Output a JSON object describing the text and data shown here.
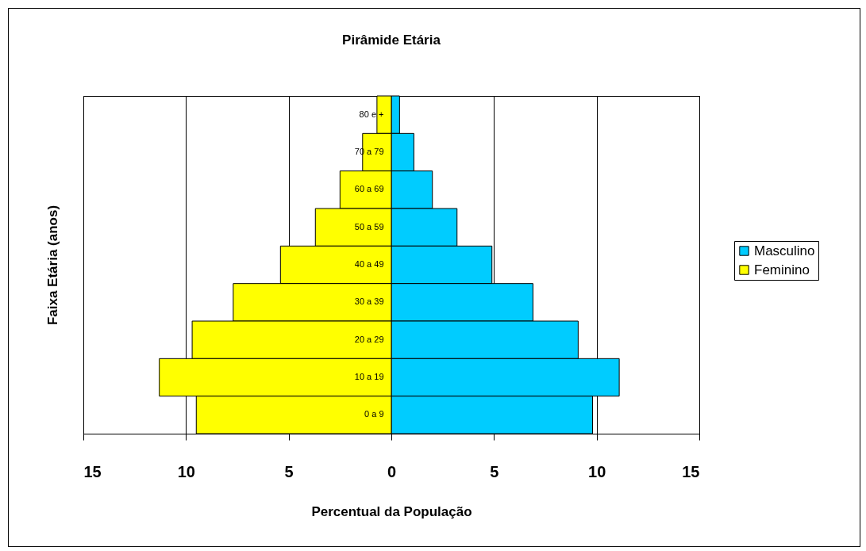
{
  "chart_data": {
    "type": "bar",
    "orientation": "horizontal",
    "title": "Pirâmide Etária",
    "xlabel": "Percentual da População",
    "ylabel": "Faixa Etária (anos)",
    "categories": [
      "80 e +",
      "70 a 79",
      "60 a 69",
      "50 a 59",
      "40 a 49",
      "30 a 39",
      "20 a 29",
      "10 a 19",
      "0 a 9"
    ],
    "series": [
      {
        "name": "Masculino",
        "color": "#00ccff",
        "values": [
          0.4,
          1.1,
          2.0,
          3.2,
          4.9,
          6.9,
          9.1,
          11.1,
          9.8
        ]
      },
      {
        "name": "Feminino",
        "color": "#ffff00",
        "values": [
          -0.7,
          -1.4,
          -2.5,
          -3.7,
          -5.4,
          -7.7,
          -9.7,
          -11.3,
          -9.5
        ]
      }
    ],
    "xlim": [
      -15,
      15
    ],
    "xticks": [
      {
        "value": -15,
        "label": "15"
      },
      {
        "value": -10,
        "label": "10"
      },
      {
        "value": -5,
        "label": "5"
      },
      0,
      5,
      10,
      15
    ],
    "stacked": true,
    "grid": "x",
    "legend": "right"
  }
}
